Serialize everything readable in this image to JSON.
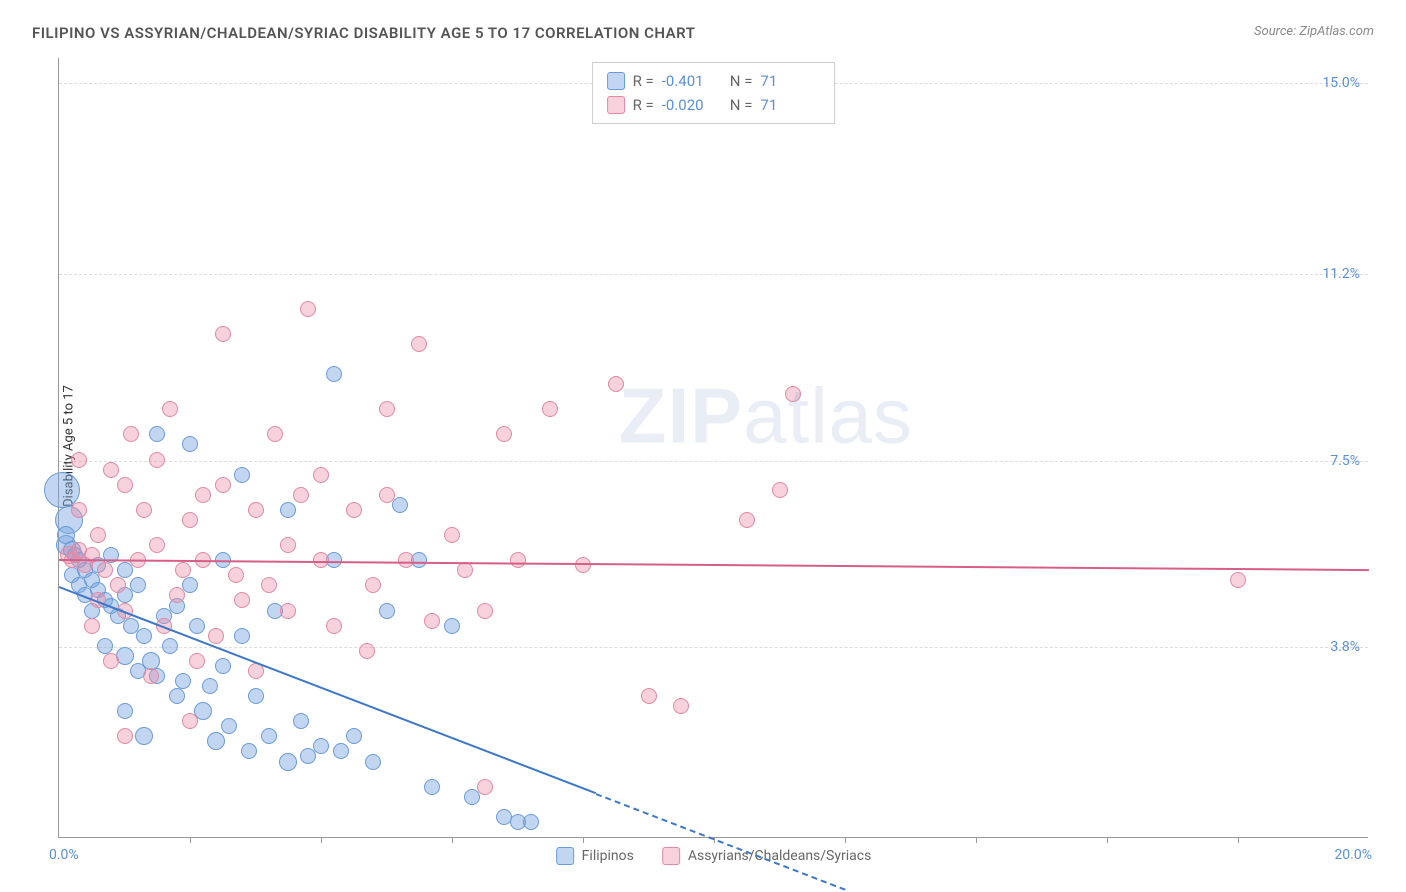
{
  "title": "FILIPINO VS ASSYRIAN/CHALDEAN/SYRIAC DISABILITY AGE 5 TO 17 CORRELATION CHART",
  "source": "Source: ZipAtlas.com",
  "y_axis_label": "Disability Age 5 to 17",
  "watermark_bold": "ZIP",
  "watermark_light": "atlas",
  "chart": {
    "type": "scatter",
    "xlim": [
      0,
      20
    ],
    "ylim": [
      0,
      15.5
    ],
    "x_origin_label": "0.0%",
    "x_max_label": "20.0%",
    "y_ticks": [
      {
        "value": 3.8,
        "label": "3.8%"
      },
      {
        "value": 7.5,
        "label": "7.5%"
      },
      {
        "value": 11.2,
        "label": "11.2%"
      },
      {
        "value": 15.0,
        "label": "15.0%"
      }
    ],
    "x_tick_positions": [
      2,
      4,
      6,
      8,
      10,
      12,
      14,
      16,
      18
    ],
    "grid_color": "#dddddd",
    "background_color": "#ffffff",
    "series": [
      {
        "key": "filipinos",
        "label": "Filipinos",
        "fill": "rgba(120,165,225,0.45)",
        "stroke": "#6a9bd8",
        "line_color": "#3d78c7",
        "R_label": "R =",
        "R_value": "-0.401",
        "N_label": "N =",
        "N_value": "71",
        "trend": {
          "x1": 0,
          "y1": 5.0,
          "x2": 8.2,
          "y2": 0.9,
          "dash_x2": 12.0,
          "dash_y2": -1.0
        },
        "points": [
          {
            "x": 0.05,
            "y": 6.9,
            "r": 18
          },
          {
            "x": 0.15,
            "y": 6.3,
            "r": 14
          },
          {
            "x": 0.1,
            "y": 5.8,
            "r": 10
          },
          {
            "x": 0.1,
            "y": 6.0,
            "r": 9
          },
          {
            "x": 0.2,
            "y": 5.7,
            "r": 9
          },
          {
            "x": 0.25,
            "y": 5.6,
            "r": 8
          },
          {
            "x": 0.3,
            "y": 5.5,
            "r": 8
          },
          {
            "x": 0.2,
            "y": 5.2,
            "r": 8
          },
          {
            "x": 0.3,
            "y": 5.0,
            "r": 8
          },
          {
            "x": 0.4,
            "y": 5.3,
            "r": 8
          },
          {
            "x": 0.5,
            "y": 5.1,
            "r": 8
          },
          {
            "x": 0.4,
            "y": 4.8,
            "r": 8
          },
          {
            "x": 0.6,
            "y": 4.9,
            "r": 8
          },
          {
            "x": 0.7,
            "y": 4.7,
            "r": 8
          },
          {
            "x": 0.5,
            "y": 4.5,
            "r": 8
          },
          {
            "x": 0.8,
            "y": 4.6,
            "r": 8
          },
          {
            "x": 0.9,
            "y": 4.4,
            "r": 8
          },
          {
            "x": 1.0,
            "y": 4.8,
            "r": 8
          },
          {
            "x": 0.6,
            "y": 5.4,
            "r": 8
          },
          {
            "x": 0.8,
            "y": 5.6,
            "r": 8
          },
          {
            "x": 1.0,
            "y": 5.3,
            "r": 8
          },
          {
            "x": 1.2,
            "y": 5.0,
            "r": 8
          },
          {
            "x": 1.1,
            "y": 4.2,
            "r": 8
          },
          {
            "x": 1.3,
            "y": 4.0,
            "r": 8
          },
          {
            "x": 1.4,
            "y": 3.5,
            "r": 9
          },
          {
            "x": 1.5,
            "y": 3.2,
            "r": 8
          },
          {
            "x": 1.0,
            "y": 3.6,
            "r": 9
          },
          {
            "x": 1.2,
            "y": 3.3,
            "r": 8
          },
          {
            "x": 1.6,
            "y": 4.4,
            "r": 8
          },
          {
            "x": 1.8,
            "y": 4.6,
            "r": 8
          },
          {
            "x": 1.7,
            "y": 3.8,
            "r": 8
          },
          {
            "x": 1.9,
            "y": 3.1,
            "r": 8
          },
          {
            "x": 2.0,
            "y": 5.0,
            "r": 8
          },
          {
            "x": 2.1,
            "y": 4.2,
            "r": 8
          },
          {
            "x": 2.2,
            "y": 2.5,
            "r": 9
          },
          {
            "x": 2.3,
            "y": 3.0,
            "r": 8
          },
          {
            "x": 2.5,
            "y": 3.4,
            "r": 8
          },
          {
            "x": 2.4,
            "y": 1.9,
            "r": 9
          },
          {
            "x": 2.6,
            "y": 2.2,
            "r": 8
          },
          {
            "x": 2.8,
            "y": 4.0,
            "r": 8
          },
          {
            "x": 2.9,
            "y": 1.7,
            "r": 8
          },
          {
            "x": 3.0,
            "y": 2.8,
            "r": 8
          },
          {
            "x": 3.2,
            "y": 2.0,
            "r": 8
          },
          {
            "x": 3.3,
            "y": 4.5,
            "r": 8
          },
          {
            "x": 3.5,
            "y": 1.5,
            "r": 9
          },
          {
            "x": 3.7,
            "y": 2.3,
            "r": 8
          },
          {
            "x": 3.8,
            "y": 1.6,
            "r": 8
          },
          {
            "x": 4.0,
            "y": 1.8,
            "r": 8
          },
          {
            "x": 4.2,
            "y": 5.5,
            "r": 8
          },
          {
            "x": 4.3,
            "y": 1.7,
            "r": 8
          },
          {
            "x": 4.5,
            "y": 2.0,
            "r": 8
          },
          {
            "x": 4.8,
            "y": 1.5,
            "r": 8
          },
          {
            "x": 5.0,
            "y": 4.5,
            "r": 8
          },
          {
            "x": 5.2,
            "y": 6.6,
            "r": 8
          },
          {
            "x": 5.5,
            "y": 5.5,
            "r": 8
          },
          {
            "x": 5.7,
            "y": 1.0,
            "r": 8
          },
          {
            "x": 6.0,
            "y": 4.2,
            "r": 8
          },
          {
            "x": 6.3,
            "y": 0.8,
            "r": 8
          },
          {
            "x": 6.8,
            "y": 0.4,
            "r": 8
          },
          {
            "x": 7.0,
            "y": 0.3,
            "r": 8
          },
          {
            "x": 7.2,
            "y": 0.3,
            "r": 8
          },
          {
            "x": 1.5,
            "y": 8.0,
            "r": 8
          },
          {
            "x": 2.0,
            "y": 7.8,
            "r": 8
          },
          {
            "x": 2.8,
            "y": 7.2,
            "r": 8
          },
          {
            "x": 3.5,
            "y": 6.5,
            "r": 8
          },
          {
            "x": 4.2,
            "y": 9.2,
            "r": 8
          },
          {
            "x": 1.3,
            "y": 2.0,
            "r": 9
          },
          {
            "x": 1.0,
            "y": 2.5,
            "r": 8
          },
          {
            "x": 1.8,
            "y": 2.8,
            "r": 8
          },
          {
            "x": 0.7,
            "y": 3.8,
            "r": 8
          },
          {
            "x": 2.5,
            "y": 5.5,
            "r": 8
          }
        ]
      },
      {
        "key": "assyrians",
        "label": "Assyrians/Chaldeans/Syriacs",
        "fill": "rgba(235,140,165,0.40)",
        "stroke": "#e08aa5",
        "line_color": "#d65f88",
        "R_label": "R =",
        "R_value": "-0.020",
        "N_label": "N =",
        "N_value": "71",
        "trend": {
          "x1": 0,
          "y1": 5.55,
          "x2": 20,
          "y2": 5.35
        },
        "points": [
          {
            "x": 0.15,
            "y": 5.6,
            "r": 9
          },
          {
            "x": 0.2,
            "y": 5.5,
            "r": 8
          },
          {
            "x": 0.3,
            "y": 5.7,
            "r": 8
          },
          {
            "x": 0.4,
            "y": 5.4,
            "r": 8
          },
          {
            "x": 0.5,
            "y": 5.6,
            "r": 8
          },
          {
            "x": 0.6,
            "y": 6.0,
            "r": 8
          },
          {
            "x": 0.7,
            "y": 5.3,
            "r": 8
          },
          {
            "x": 0.8,
            "y": 7.3,
            "r": 8
          },
          {
            "x": 0.3,
            "y": 7.5,
            "r": 8
          },
          {
            "x": 1.0,
            "y": 7.0,
            "r": 8
          },
          {
            "x": 1.2,
            "y": 5.5,
            "r": 8
          },
          {
            "x": 1.3,
            "y": 6.5,
            "r": 8
          },
          {
            "x": 1.5,
            "y": 7.5,
            "r": 8
          },
          {
            "x": 1.5,
            "y": 5.8,
            "r": 8
          },
          {
            "x": 1.7,
            "y": 8.5,
            "r": 8
          },
          {
            "x": 1.8,
            "y": 4.8,
            "r": 8
          },
          {
            "x": 2.0,
            "y": 6.3,
            "r": 8
          },
          {
            "x": 2.1,
            "y": 3.5,
            "r": 8
          },
          {
            "x": 2.2,
            "y": 5.5,
            "r": 8
          },
          {
            "x": 2.4,
            "y": 4.0,
            "r": 8
          },
          {
            "x": 2.5,
            "y": 7.0,
            "r": 8
          },
          {
            "x": 2.5,
            "y": 10.0,
            "r": 8
          },
          {
            "x": 2.7,
            "y": 5.2,
            "r": 8
          },
          {
            "x": 3.0,
            "y": 6.5,
            "r": 8
          },
          {
            "x": 3.2,
            "y": 5.0,
            "r": 8
          },
          {
            "x": 3.3,
            "y": 8.0,
            "r": 8
          },
          {
            "x": 3.5,
            "y": 4.5,
            "r": 8
          },
          {
            "x": 3.7,
            "y": 6.8,
            "r": 8
          },
          {
            "x": 3.8,
            "y": 10.5,
            "r": 8
          },
          {
            "x": 4.0,
            "y": 5.5,
            "r": 8
          },
          {
            "x": 4.2,
            "y": 4.2,
            "r": 8
          },
          {
            "x": 4.5,
            "y": 6.5,
            "r": 8
          },
          {
            "x": 4.8,
            "y": 5.0,
            "r": 8
          },
          {
            "x": 5.0,
            "y": 8.5,
            "r": 8
          },
          {
            "x": 5.3,
            "y": 5.5,
            "r": 8
          },
          {
            "x": 5.5,
            "y": 9.8,
            "r": 8
          },
          {
            "x": 5.7,
            "y": 4.3,
            "r": 8
          },
          {
            "x": 6.0,
            "y": 6.0,
            "r": 8
          },
          {
            "x": 6.2,
            "y": 5.3,
            "r": 8
          },
          {
            "x": 6.5,
            "y": 1.0,
            "r": 8
          },
          {
            "x": 6.8,
            "y": 8.0,
            "r": 8
          },
          {
            "x": 7.0,
            "y": 5.5,
            "r": 8
          },
          {
            "x": 7.5,
            "y": 8.5,
            "r": 8
          },
          {
            "x": 8.0,
            "y": 5.4,
            "r": 8
          },
          {
            "x": 8.5,
            "y": 9.0,
            "r": 8
          },
          {
            "x": 9.0,
            "y": 2.8,
            "r": 8
          },
          {
            "x": 9.5,
            "y": 2.6,
            "r": 8
          },
          {
            "x": 10.5,
            "y": 6.3,
            "r": 8
          },
          {
            "x": 11.0,
            "y": 6.9,
            "r": 8
          },
          {
            "x": 11.2,
            "y": 8.8,
            "r": 8
          },
          {
            "x": 18.0,
            "y": 5.1,
            "r": 8
          },
          {
            "x": 1.0,
            "y": 2.0,
            "r": 8
          },
          {
            "x": 1.4,
            "y": 3.2,
            "r": 8
          },
          {
            "x": 0.5,
            "y": 4.2,
            "r": 8
          },
          {
            "x": 1.0,
            "y": 4.5,
            "r": 8
          },
          {
            "x": 2.0,
            "y": 2.3,
            "r": 8
          },
          {
            "x": 0.8,
            "y": 3.5,
            "r": 8
          },
          {
            "x": 3.0,
            "y": 3.3,
            "r": 8
          },
          {
            "x": 2.2,
            "y": 6.8,
            "r": 8
          },
          {
            "x": 1.1,
            "y": 8.0,
            "r": 8
          },
          {
            "x": 0.3,
            "y": 6.5,
            "r": 8
          },
          {
            "x": 0.9,
            "y": 5.0,
            "r": 8
          },
          {
            "x": 1.6,
            "y": 4.2,
            "r": 8
          },
          {
            "x": 2.8,
            "y": 4.7,
            "r": 8
          },
          {
            "x": 4.7,
            "y": 3.7,
            "r": 8
          },
          {
            "x": 5.0,
            "y": 6.8,
            "r": 8
          },
          {
            "x": 3.5,
            "y": 5.8,
            "r": 8
          },
          {
            "x": 4.0,
            "y": 7.2,
            "r": 8
          },
          {
            "x": 6.5,
            "y": 4.5,
            "r": 8
          },
          {
            "x": 0.6,
            "y": 4.7,
            "r": 8
          },
          {
            "x": 1.9,
            "y": 5.3,
            "r": 8
          }
        ]
      }
    ]
  }
}
